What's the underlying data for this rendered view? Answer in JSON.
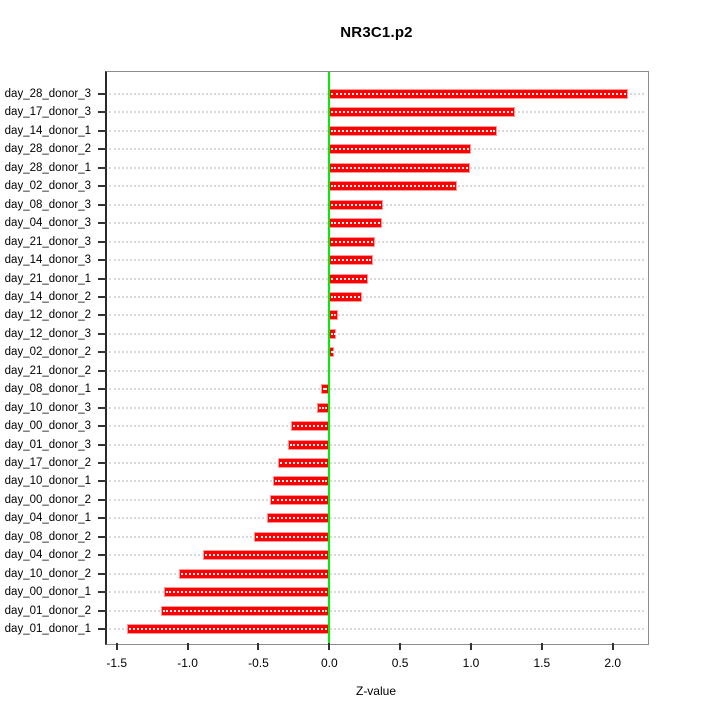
{
  "chart_data": {
    "type": "bar",
    "orientation": "horizontal",
    "title": "NR3C1.p2",
    "xlabel": "Z-value",
    "grid": "dotted-horizontal",
    "xlim": [
      -1.58,
      2.24
    ],
    "x_tick_values": [
      -1.5,
      -1.0,
      -0.5,
      0.0,
      0.5,
      1.0,
      1.5,
      2.0
    ],
    "x_tick_labels": [
      "-1.5",
      "-1.0",
      "-0.5",
      "0.0",
      "0.5",
      "1.0",
      "1.5",
      "2.0"
    ],
    "zero_reference_line": 0.0,
    "colors": {
      "bar_fill": "#ff0000",
      "bar_border": "#ff9999",
      "zero_line": "#00ee00",
      "grid_dots": "#d9d9d9",
      "box_border": "#8c8c8c"
    },
    "categories": [
      "day_28_donor_3",
      "day_17_donor_3",
      "day_14_donor_1",
      "day_28_donor_2",
      "day_28_donor_1",
      "day_02_donor_3",
      "day_08_donor_3",
      "day_04_donor_3",
      "day_21_donor_3",
      "day_14_donor_3",
      "day_21_donor_1",
      "day_14_donor_2",
      "day_12_donor_2",
      "day_12_donor_3",
      "day_02_donor_2",
      "day_21_donor_2",
      "day_08_donor_1",
      "day_10_donor_3",
      "day_00_donor_3",
      "day_01_donor_3",
      "day_17_donor_2",
      "day_10_donor_1",
      "day_00_donor_2",
      "day_04_donor_1",
      "day_08_donor_2",
      "day_04_donor_2",
      "day_10_donor_2",
      "day_00_donor_1",
      "day_01_donor_2",
      "day_01_donor_1"
    ],
    "values": [
      2.11,
      1.31,
      1.18,
      1.0,
      0.99,
      0.9,
      0.38,
      0.37,
      0.32,
      0.31,
      0.27,
      0.23,
      0.06,
      0.05,
      0.03,
      0.0,
      -0.06,
      -0.09,
      -0.27,
      -0.29,
      -0.36,
      -0.4,
      -0.42,
      -0.44,
      -0.53,
      -0.89,
      -1.06,
      -1.17,
      -1.19,
      -1.43
    ]
  }
}
